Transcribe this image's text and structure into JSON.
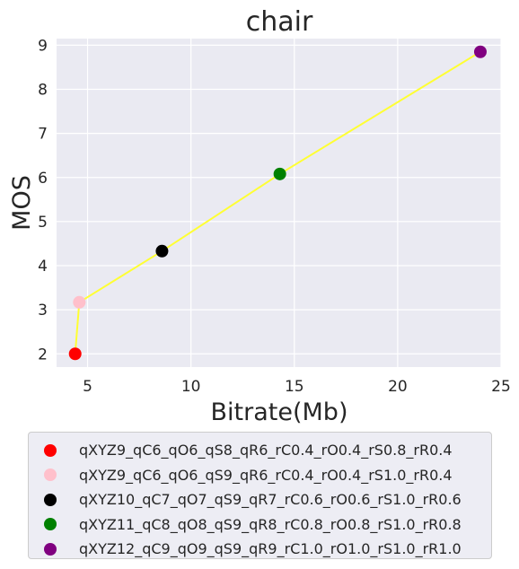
{
  "chart_data": {
    "type": "scatter",
    "title": "chair",
    "xlabel": "Bitrate(Mb)",
    "ylabel": "MOS",
    "xlim": [
      3.5,
      25
    ],
    "ylim": [
      1.7,
      9.15
    ],
    "xticks": [
      5,
      10,
      15,
      20,
      25
    ],
    "yticks": [
      2,
      3,
      4,
      5,
      6,
      7,
      8,
      9
    ],
    "grid": true,
    "line_color": "#ffff33",
    "legend_position": "below",
    "series": [
      {
        "name": "qXYZ9_qC6_qO6_qS8_qR6_rC0.4_rO0.4_rS0.8_rR0.4",
        "color": "#ff0000",
        "x": 4.4,
        "y": 2.0
      },
      {
        "name": "qXYZ9_qC6_qO6_qS9_qR6_rC0.4_rO0.4_rS1.0_rR0.4",
        "color": "#ffc0cb",
        "x": 4.6,
        "y": 3.17
      },
      {
        "name": "qXYZ10_qC7_qO7_qS9_qR7_rC0.6_rO0.6_rS1.0_rR0.6",
        "color": "#000000",
        "x": 8.6,
        "y": 4.33
      },
      {
        "name": "qXYZ11_qC8_qO8_qS9_qR8_rC0.8_rO0.8_rS1.0_rR0.8",
        "color": "#008000",
        "x": 14.3,
        "y": 6.08
      },
      {
        "name": "qXYZ12_qC9_qO9_qS9_qR9_rC1.0_rO1.0_rS1.0_rR1.0",
        "color": "#800080",
        "x": 24.0,
        "y": 8.85
      }
    ]
  }
}
